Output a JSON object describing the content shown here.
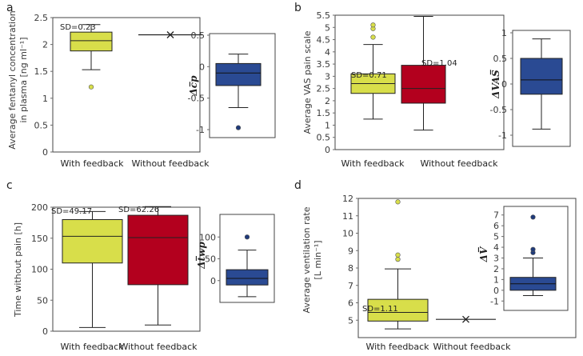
{
  "figure": {
    "colors": {
      "with_feedback": "#d8de4a",
      "without_feedback": "#b3001e",
      "inset": "#2a4a93",
      "outlier_with": "#d8de4a",
      "outlier_inset": "#1f3a7a"
    }
  },
  "chart_data": [
    {
      "panel": "a",
      "type": "box",
      "ylabel": "Average fentanyl concentration in plasma [ng ml⁻¹]",
      "ylabel_lines": [
        "Average fentanyl concentration",
        "in plasma [ng ml⁻¹]"
      ],
      "ylim": [
        0,
        2.5
      ],
      "yticks": [
        0,
        0.5,
        1,
        1.5,
        2,
        2.5
      ],
      "ytick_labels": [
        "0",
        "0.5",
        "1",
        "1.5",
        "2",
        "2.5"
      ],
      "categories": [
        "With feedback",
        "Without feedback"
      ],
      "boxes": [
        {
          "name": "With feedback",
          "whisker_low": 1.53,
          "q1": 1.88,
          "median": 2.07,
          "q3": 2.23,
          "whisker_high": 2.37,
          "outliers": [
            1.21
          ],
          "sd_label": "SD=0.23"
        },
        {
          "name": "Without feedback",
          "single_value": 2.18,
          "line_span": true
        }
      ],
      "inset": {
        "ylabel": "Δc̅p",
        "ylim": [
          -1,
          0.5
        ],
        "yticks": [
          -1,
          -0.5,
          0,
          0.5
        ],
        "ytick_labels": [
          "-1",
          "-0.5",
          "0",
          "0.5"
        ],
        "box": {
          "whisker_low": -0.65,
          "q1": -0.3,
          "median": -0.1,
          "q3": 0.05,
          "whisker_high": 0.2,
          "outliers": [
            -0.97
          ]
        }
      }
    },
    {
      "panel": "b",
      "type": "box",
      "ylabel": "Average VAS pain scale",
      "ylabel_lines": [
        "Average VAS pain scale"
      ],
      "ylim": [
        0,
        5.5
      ],
      "yticks": [
        0,
        0.5,
        1,
        1.5,
        2,
        2.5,
        3,
        3.5,
        4,
        4.5,
        5,
        5.5
      ],
      "ytick_labels": [
        "0",
        "0.5",
        "1",
        "1.5",
        "2",
        "2.5",
        "3",
        "3.5",
        "4",
        "4.5",
        "5",
        "5.5"
      ],
      "categories": [
        "With feedback",
        "Without feedback"
      ],
      "boxes": [
        {
          "name": "With feedback",
          "whisker_low": 1.25,
          "q1": 2.3,
          "median": 2.7,
          "q3": 3.1,
          "whisker_high": 4.3,
          "outliers": [
            4.6,
            4.95,
            5.1
          ],
          "sd_label": "SD=0.71"
        },
        {
          "name": "Without feedback",
          "whisker_low": 0.8,
          "q1": 1.9,
          "median": 2.5,
          "q3": 3.45,
          "whisker_high": 5.45,
          "outliers": [],
          "sd_label": "SD=1.04"
        }
      ],
      "inset": {
        "ylabel": "ΔVAS̅",
        "ylim": [
          -1,
          1
        ],
        "yticks": [
          -1,
          -0.5,
          0,
          0.5,
          1
        ],
        "ytick_labels": [
          "-1",
          "-0.5",
          "0",
          "0.5",
          "1"
        ],
        "box": {
          "whisker_low": -0.88,
          "q1": -0.2,
          "median": 0.08,
          "q3": 0.5,
          "whisker_high": 0.88,
          "outliers": []
        }
      }
    },
    {
      "panel": "c",
      "type": "box",
      "ylabel": "Time without pain [h]",
      "ylabel_lines": [
        "Time without pain [h]"
      ],
      "ylim": [
        0,
        200
      ],
      "yticks": [
        0,
        50,
        100,
        150,
        200
      ],
      "ytick_labels": [
        "0",
        "50",
        "100",
        "150",
        "200"
      ],
      "categories": [
        "With feedback",
        "Without feedback"
      ],
      "boxes": [
        {
          "name": "With feedback",
          "whisker_low": 6,
          "q1": 110,
          "median": 153,
          "q3": 180,
          "whisker_high": 193,
          "outliers": [],
          "sd_label": "SD=49.17"
        },
        {
          "name": "Without feedback",
          "whisker_low": 10,
          "q1": 75,
          "median": 151,
          "q3": 187,
          "whisker_high": 201,
          "outliers": [],
          "sd_label": "SD=62.26"
        }
      ],
      "inset": {
        "ylabel": "Δt̅wp",
        "ylim": [
          -50,
          150
        ],
        "yticks": [
          0,
          50,
          100
        ],
        "ytick_labels": [
          "0",
          "50",
          "100"
        ],
        "box": {
          "whisker_low": -37,
          "q1": -10,
          "median": 5,
          "q3": 25,
          "whisker_high": 70,
          "outliers": [
            100
          ]
        }
      }
    },
    {
      "panel": "d",
      "type": "box",
      "ylabel": "Average ventilation rate [L min⁻¹]",
      "ylabel_lines": [
        "Average ventilation rate",
        "[L min⁻¹]"
      ],
      "ylim": [
        4,
        12
      ],
      "yticks": [
        5,
        6,
        7,
        8,
        9,
        10,
        11,
        12
      ],
      "ytick_labels": [
        "5",
        "6",
        "7",
        "8",
        "9",
        "10",
        "11",
        "12"
      ],
      "categories": [
        "With feedback",
        "Without feedback"
      ],
      "boxes": [
        {
          "name": "With feedback",
          "whisker_low": 4.5,
          "q1": 4.95,
          "median": 5.45,
          "q3": 6.2,
          "whisker_high": 7.95,
          "outliers": [
            8.5,
            8.75,
            11.8
          ],
          "sd_label": "SD=1.11"
        },
        {
          "name": "Without feedback",
          "single_value": 5.05,
          "line_span": true
        }
      ],
      "inset": {
        "ylabel": "ΔV̅",
        "ylim": [
          -1.5,
          7.5
        ],
        "yticks": [
          -1,
          0,
          1,
          2,
          3,
          4,
          5,
          6,
          7
        ],
        "ytick_labels": [
          "-1",
          "0",
          "1",
          "2",
          "3",
          "4",
          "5",
          "6",
          "7"
        ],
        "box": {
          "whisker_low": -0.5,
          "q1": 0,
          "median": 0.6,
          "q3": 1.2,
          "whisker_high": 3.0,
          "outliers": [
            3.5,
            3.8,
            6.8
          ]
        }
      }
    }
  ]
}
